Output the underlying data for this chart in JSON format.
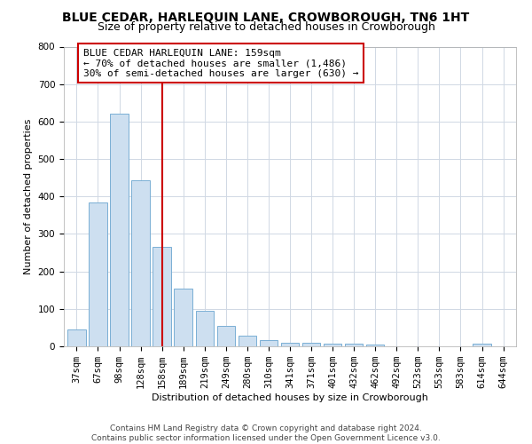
{
  "title": "BLUE CEDAR, HARLEQUIN LANE, CROWBOROUGH, TN6 1HT",
  "subtitle": "Size of property relative to detached houses in Crowborough",
  "xlabel": "Distribution of detached houses by size in Crowborough",
  "ylabel": "Number of detached properties",
  "categories": [
    "37sqm",
    "67sqm",
    "98sqm",
    "128sqm",
    "158sqm",
    "189sqm",
    "219sqm",
    "249sqm",
    "280sqm",
    "310sqm",
    "341sqm",
    "371sqm",
    "401sqm",
    "432sqm",
    "462sqm",
    "492sqm",
    "523sqm",
    "553sqm",
    "583sqm",
    "614sqm",
    "644sqm"
  ],
  "values": [
    46,
    383,
    622,
    443,
    265,
    155,
    95,
    55,
    28,
    16,
    10,
    10,
    8,
    8,
    5,
    1,
    1,
    1,
    0,
    7,
    0
  ],
  "bar_color": "#cddff0",
  "bar_edge_color": "#7aafd4",
  "vline_x_index": 4,
  "vline_color": "#cc0000",
  "annotation_text_line1": "BLUE CEDAR HARLEQUIN LANE: 159sqm",
  "annotation_text_line2": "← 70% of detached houses are smaller (1,486)",
  "annotation_text_line3": "30% of semi-detached houses are larger (630) →",
  "ylim": [
    0,
    800
  ],
  "yticks": [
    0,
    100,
    200,
    300,
    400,
    500,
    600,
    700,
    800
  ],
  "footer": "Contains HM Land Registry data © Crown copyright and database right 2024.\nContains public sector information licensed under the Open Government Licence v3.0.",
  "title_fontsize": 10,
  "subtitle_fontsize": 9,
  "axis_label_fontsize": 8,
  "tick_fontsize": 7.5,
  "annotation_fontsize": 8,
  "footer_fontsize": 6.5,
  "background_color": "#ffffff",
  "grid_color": "#d0d8e4"
}
